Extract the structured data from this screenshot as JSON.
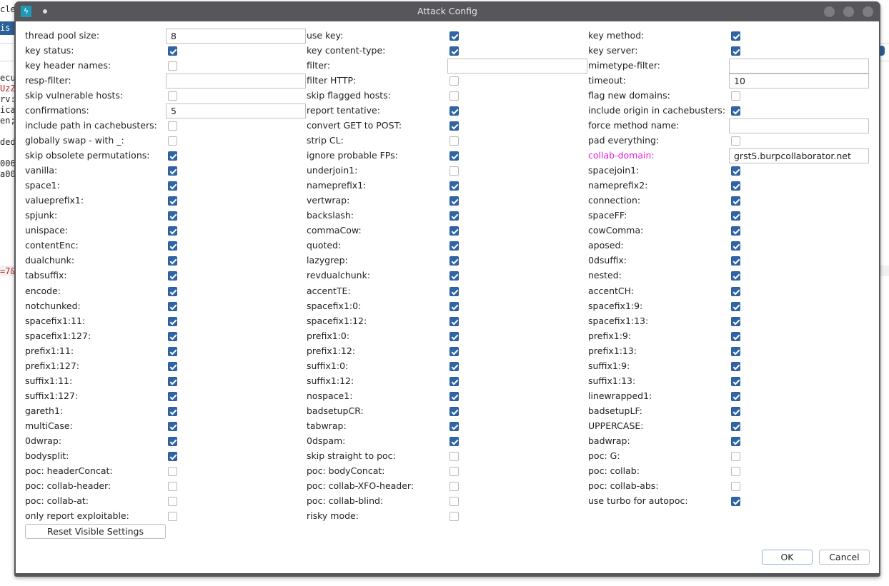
{
  "background": {
    "fragments": [
      "cle",
      "is c",
      "ecu",
      "UzZ",
      "rv:",
      "ica",
      "en;",
      "ded",
      "006",
      "a00",
      "=7&"
    ]
  },
  "dialog": {
    "title": "Attack Config",
    "columns": [
      [
        {
          "label": "thread pool size:",
          "type": "text",
          "value": "8"
        },
        {
          "label": "key status:",
          "type": "check",
          "checked": true
        },
        {
          "label": "key header names:",
          "type": "check",
          "checked": false
        },
        {
          "label": "resp-filter:",
          "type": "text",
          "value": ""
        },
        {
          "label": "skip vulnerable hosts:",
          "type": "check",
          "checked": false
        },
        {
          "label": "confirmations:",
          "type": "text",
          "value": "5"
        },
        {
          "label": "include path in cachebusters:",
          "type": "check",
          "checked": false
        },
        {
          "label": "globally swap - with _:",
          "type": "check",
          "checked": false
        },
        {
          "label": "skip obsolete permutations:",
          "type": "check",
          "checked": true
        },
        {
          "label": "vanilla:",
          "type": "check",
          "checked": true
        },
        {
          "label": "space1:",
          "type": "check",
          "checked": true
        },
        {
          "label": "valueprefix1:",
          "type": "check",
          "checked": true
        },
        {
          "label": "spjunk:",
          "type": "check",
          "checked": true
        },
        {
          "label": "unispace:",
          "type": "check",
          "checked": true
        },
        {
          "label": "contentEnc:",
          "type": "check",
          "checked": true
        },
        {
          "label": "dualchunk:",
          "type": "check",
          "checked": true
        },
        {
          "label": "tabsuffix:",
          "type": "check",
          "checked": true
        },
        {
          "label": "encode:",
          "type": "check",
          "checked": true
        },
        {
          "label": "notchunked:",
          "type": "check",
          "checked": true
        },
        {
          "label": "spacefix1:11:",
          "type": "check",
          "checked": true
        },
        {
          "label": "spacefix1:127:",
          "type": "check",
          "checked": true
        },
        {
          "label": "prefix1:11:",
          "type": "check",
          "checked": true
        },
        {
          "label": "prefix1:127:",
          "type": "check",
          "checked": true
        },
        {
          "label": "suffix1:11:",
          "type": "check",
          "checked": true
        },
        {
          "label": "suffix1:127:",
          "type": "check",
          "checked": true
        },
        {
          "label": "gareth1:",
          "type": "check",
          "checked": true
        },
        {
          "label": "multiCase:",
          "type": "check",
          "checked": true
        },
        {
          "label": "0dwrap:",
          "type": "check",
          "checked": true
        },
        {
          "label": "bodysplit:",
          "type": "check",
          "checked": true
        },
        {
          "label": "poc: headerConcat:",
          "type": "check",
          "checked": false
        },
        {
          "label": "poc: collab-header:",
          "type": "check",
          "checked": false
        },
        {
          "label": "poc: collab-at:",
          "type": "check",
          "checked": false
        },
        {
          "label": "only report exploitable:",
          "type": "check",
          "checked": false
        }
      ],
      [
        {
          "label": "use key:",
          "type": "check",
          "checked": true
        },
        {
          "label": "key content-type:",
          "type": "check",
          "checked": true
        },
        {
          "label": "filter:",
          "type": "text",
          "value": ""
        },
        {
          "label": "filter HTTP:",
          "type": "check",
          "checked": false
        },
        {
          "label": "skip flagged hosts:",
          "type": "check",
          "checked": false
        },
        {
          "label": "report tentative:",
          "type": "check",
          "checked": true
        },
        {
          "label": "convert GET to POST:",
          "type": "check",
          "checked": true
        },
        {
          "label": "strip CL:",
          "type": "check",
          "checked": false
        },
        {
          "label": "ignore probable FPs:",
          "type": "check",
          "checked": true
        },
        {
          "label": "underjoin1:",
          "type": "check",
          "checked": false
        },
        {
          "label": "nameprefix1:",
          "type": "check",
          "checked": true
        },
        {
          "label": "vertwrap:",
          "type": "check",
          "checked": true
        },
        {
          "label": "backslash:",
          "type": "check",
          "checked": true
        },
        {
          "label": "commaCow:",
          "type": "check",
          "checked": true
        },
        {
          "label": "quoted:",
          "type": "check",
          "checked": true
        },
        {
          "label": "lazygrep:",
          "type": "check",
          "checked": true
        },
        {
          "label": "revdualchunk:",
          "type": "check",
          "checked": true
        },
        {
          "label": "accentTE:",
          "type": "check",
          "checked": true
        },
        {
          "label": "spacefix1:0:",
          "type": "check",
          "checked": true
        },
        {
          "label": "spacefix1:12:",
          "type": "check",
          "checked": true
        },
        {
          "label": "prefix1:0:",
          "type": "check",
          "checked": true
        },
        {
          "label": "prefix1:12:",
          "type": "check",
          "checked": true
        },
        {
          "label": "suffix1:0:",
          "type": "check",
          "checked": true
        },
        {
          "label": "suffix1:12:",
          "type": "check",
          "checked": true
        },
        {
          "label": "nospace1:",
          "type": "check",
          "checked": true
        },
        {
          "label": "badsetupCR:",
          "type": "check",
          "checked": true
        },
        {
          "label": "tabwrap:",
          "type": "check",
          "checked": true
        },
        {
          "label": "0dspam:",
          "type": "check",
          "checked": true
        },
        {
          "label": "skip straight to poc:",
          "type": "check",
          "checked": false
        },
        {
          "label": "poc: bodyConcat:",
          "type": "check",
          "checked": false
        },
        {
          "label": "poc: collab-XFO-header:",
          "type": "check",
          "checked": false
        },
        {
          "label": "poc: collab-blind:",
          "type": "check",
          "checked": false
        },
        {
          "label": "risky mode:",
          "type": "check",
          "checked": false
        }
      ],
      [
        {
          "label": "key method:",
          "type": "check",
          "checked": true
        },
        {
          "label": "key server:",
          "type": "check",
          "checked": true
        },
        {
          "label": "mimetype-filter:",
          "type": "text",
          "value": ""
        },
        {
          "label": "timeout:",
          "type": "text",
          "value": "10"
        },
        {
          "label": "flag new domains:",
          "type": "check",
          "checked": false
        },
        {
          "label": "include origin in cachebusters:",
          "type": "check",
          "checked": true
        },
        {
          "label": "force method name:",
          "type": "text",
          "value": ""
        },
        {
          "label": "pad everything:",
          "type": "check",
          "checked": false
        },
        {
          "label": "collab-domain:",
          "type": "text",
          "value": "grst5.burpcollaborator.net",
          "highlight": "#e01ee0"
        },
        {
          "label": "spacejoin1:",
          "type": "check",
          "checked": true
        },
        {
          "label": "nameprefix2:",
          "type": "check",
          "checked": true
        },
        {
          "label": "connection:",
          "type": "check",
          "checked": true
        },
        {
          "label": "spaceFF:",
          "type": "check",
          "checked": true
        },
        {
          "label": "cowComma:",
          "type": "check",
          "checked": true
        },
        {
          "label": "aposed:",
          "type": "check",
          "checked": true
        },
        {
          "label": "0dsuffix:",
          "type": "check",
          "checked": true
        },
        {
          "label": "nested:",
          "type": "check",
          "checked": true
        },
        {
          "label": "accentCH:",
          "type": "check",
          "checked": true
        },
        {
          "label": "spacefix1:9:",
          "type": "check",
          "checked": true
        },
        {
          "label": "spacefix1:13:",
          "type": "check",
          "checked": true
        },
        {
          "label": "prefix1:9:",
          "type": "check",
          "checked": true
        },
        {
          "label": "prefix1:13:",
          "type": "check",
          "checked": true
        },
        {
          "label": "suffix1:9:",
          "type": "check",
          "checked": true
        },
        {
          "label": "suffix1:13:",
          "type": "check",
          "checked": true
        },
        {
          "label": "linewrapped1:",
          "type": "check",
          "checked": true
        },
        {
          "label": "badsetupLF:",
          "type": "check",
          "checked": true
        },
        {
          "label": "UPPERCASE:",
          "type": "check",
          "checked": true
        },
        {
          "label": "badwrap:",
          "type": "check",
          "checked": true
        },
        {
          "label": "poc: G:",
          "type": "check",
          "checked": false
        },
        {
          "label": "poc: collab:",
          "type": "check",
          "checked": false
        },
        {
          "label": "poc: collab-abs:",
          "type": "check",
          "checked": false
        },
        {
          "label": "use turbo for autopoc:",
          "type": "check",
          "checked": true
        }
      ]
    ],
    "reset_label": "Reset Visible Settings",
    "ok_label": "OK",
    "cancel_label": "Cancel"
  }
}
